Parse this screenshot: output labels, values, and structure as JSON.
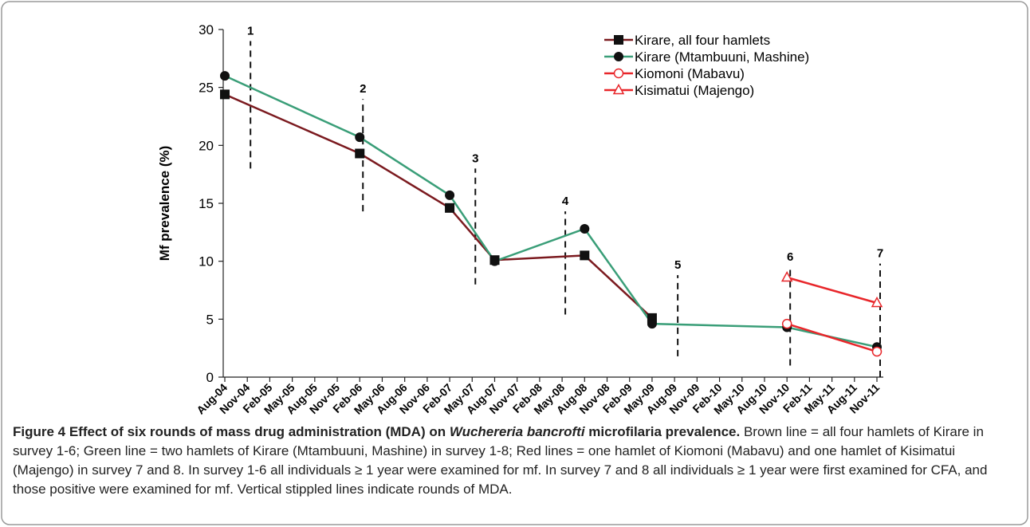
{
  "chart_data": {
    "type": "line",
    "y_label": "Mf prevalence (%)",
    "categories": [
      "Aug-04",
      "Nov-04",
      "Feb-05",
      "May-05",
      "Aug-05",
      "Nov-05",
      "Feb-06",
      "May-06",
      "Aug-06",
      "Nov-06",
      "Feb-07",
      "May-07",
      "Aug-07",
      "Nov-07",
      "Feb-08",
      "May-08",
      "Aug-08",
      "Nov-08",
      "Feb-09",
      "May-09",
      "Aug-09",
      "Nov-09",
      "Feb-10",
      "May-10",
      "Aug-10",
      "Nov-10",
      "Feb-11",
      "May-11",
      "Aug-11",
      "Nov-11"
    ],
    "ylim": [
      0,
      30
    ],
    "yticks": [
      0,
      5,
      10,
      15,
      20,
      25,
      30
    ],
    "grid": false,
    "legend": "top-right",
    "series": [
      {
        "name": "Kirare, all four hamlets",
        "color": "#7b1a1f",
        "marker": "square",
        "marker_color": "#111111",
        "filled": true,
        "x": [
          "Aug-04",
          "Feb-06",
          "Feb-07",
          "Aug-07",
          "Aug-08",
          "May-09"
        ],
        "values": [
          24.4,
          19.3,
          14.6,
          10.1,
          10.5,
          5.1
        ]
      },
      {
        "name": "Kirare (Mtambuuni, Mashine)",
        "color": "#3a9e78",
        "marker": "circle",
        "marker_color": "#111111",
        "filled": true,
        "x": [
          "Aug-04",
          "Feb-06",
          "Feb-07",
          "Aug-07",
          "Aug-08",
          "May-09",
          "Nov-10",
          "Nov-11"
        ],
        "values": [
          26.0,
          20.7,
          15.7,
          10.0,
          12.8,
          4.6,
          4.3,
          2.6
        ]
      },
      {
        "name": "Kiomoni (Mabavu)",
        "color": "#e8262a",
        "marker": "circle",
        "marker_color": "#e8262a",
        "filled": false,
        "x": [
          "Nov-10",
          "Nov-11"
        ],
        "values": [
          4.6,
          2.2
        ]
      },
      {
        "name": "Kisimatui (Majengo)",
        "color": "#e8262a",
        "marker": "triangle",
        "marker_color": "#e8262a",
        "filled": false,
        "x": [
          "Nov-10",
          "Nov-11"
        ],
        "values": [
          8.6,
          6.4
        ]
      }
    ],
    "rounds": [
      {
        "label": "1",
        "x": "Nov-04",
        "from": 18,
        "to": 29
      },
      {
        "label": "2",
        "x": "Feb-06",
        "from": 14.3,
        "to": 24
      },
      {
        "label": "3",
        "x": "May-07",
        "from": 8,
        "to": 18
      },
      {
        "label": "4",
        "x": "May-08",
        "from": 5.4,
        "to": 14.3
      },
      {
        "label": "5",
        "x": "Aug-09",
        "from": 1.8,
        "to": 8.8
      },
      {
        "label": "6",
        "x": "Nov-10",
        "from": 1,
        "to": 9.5
      },
      {
        "label": "7",
        "x": "Nov-11",
        "from": 0,
        "to": 9.8
      }
    ]
  },
  "caption": {
    "title_before": "Figure 4 Effect of six rounds of mass drug administration (MDA) on ",
    "title_italic": "Wuchereria bancrofti",
    "title_after": " microfilaria prevalence.",
    "text": "Brown line = all four hamlets of Kirare in survey 1-6; Green line = two hamlets of Kirare (Mtambuuni, Mashine) in survey 1-8; Red lines = one hamlet of Kiomoni (Mabavu) and one hamlet of Kisimatui (Majengo) in survey 7 and 8. In survey 1-6 all individuals ≥ 1 year were examined for mf. In survey 7 and 8 all individuals ≥ 1 year were first examined for CFA, and those positive were examined for mf. Vertical stippled lines indicate rounds of MDA."
  }
}
